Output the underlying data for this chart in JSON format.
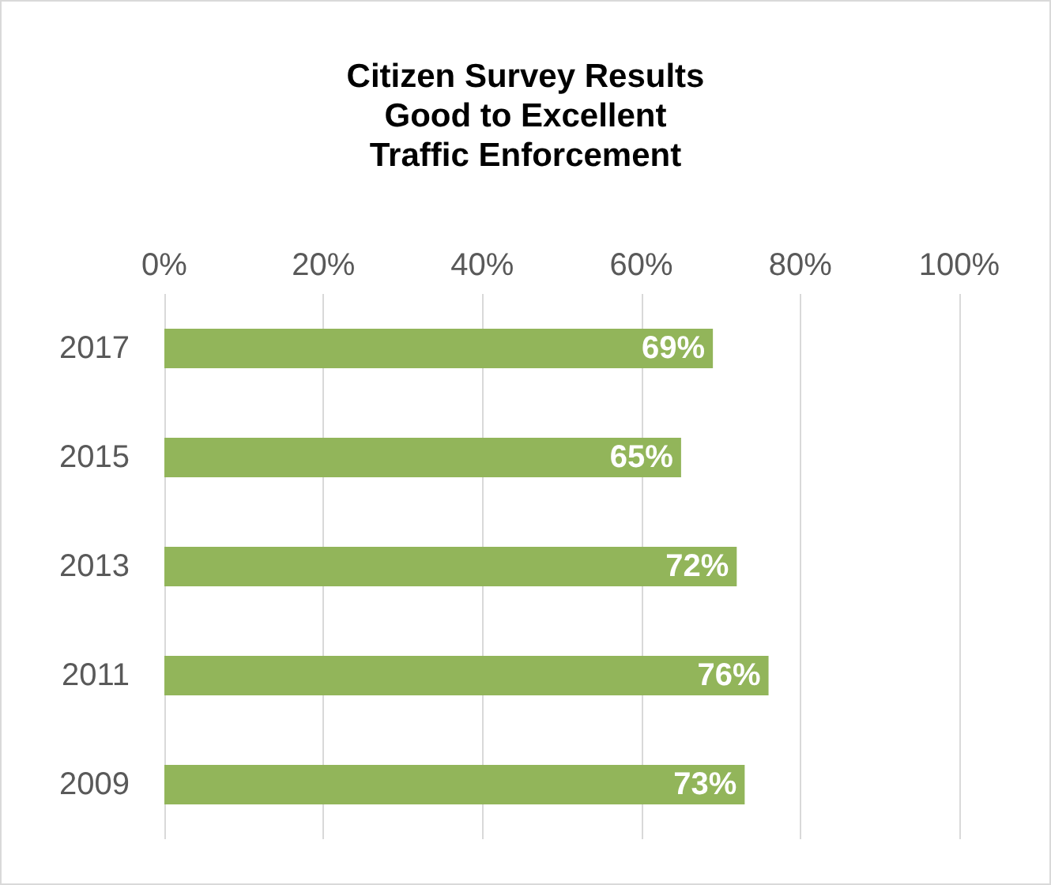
{
  "chart_data": {
    "type": "bar",
    "orientation": "horizontal",
    "title": "Citizen Survey Results\nGood to Excellent\nTraffic Enforcement",
    "categories": [
      "2017",
      "2015",
      "2013",
      "2011",
      "2009"
    ],
    "values": [
      69,
      65,
      72,
      76,
      73
    ],
    "value_labels": [
      "69%",
      "65%",
      "72%",
      "76%",
      "73%"
    ],
    "color": "#92b55a",
    "xlim": [
      0,
      100
    ],
    "xticks": [
      {
        "value": 0,
        "label": "0%"
      },
      {
        "value": 20,
        "label": "20%"
      },
      {
        "value": 40,
        "label": "40%"
      },
      {
        "value": 60,
        "label": "60%"
      },
      {
        "value": 80,
        "label": "80%"
      },
      {
        "value": 100,
        "label": "100%"
      }
    ],
    "grid": "x"
  }
}
